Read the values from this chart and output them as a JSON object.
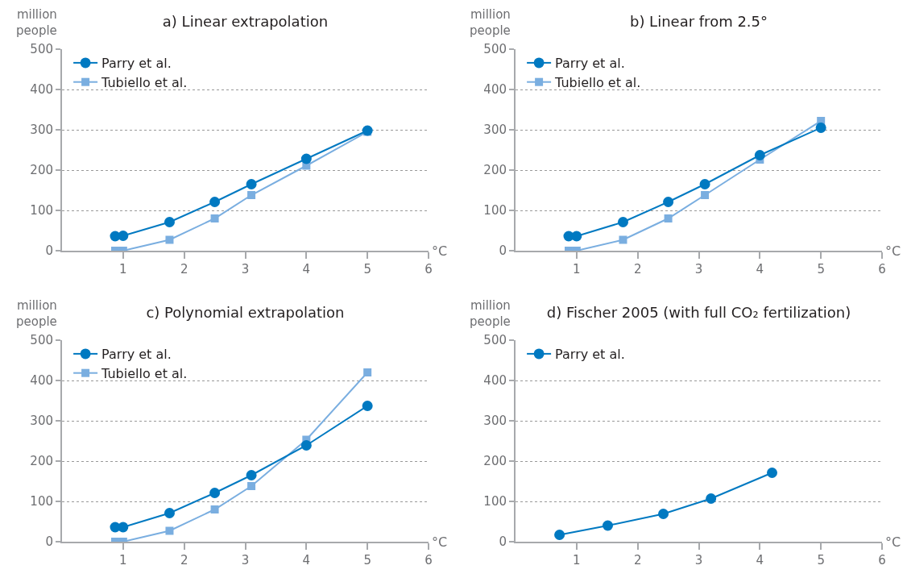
{
  "chart_data": [
    {
      "type": "line",
      "title": "a) Linear extrapolation",
      "xlabel": "°C",
      "ylabel": "million people",
      "xlim": [
        0,
        6
      ],
      "xticks": [
        1,
        2,
        3,
        4,
        5,
        6
      ],
      "ylim": [
        0,
        500
      ],
      "yticks": [
        0,
        100,
        200,
        300,
        400,
        500
      ],
      "grid": "y",
      "legend": "top left",
      "x": [
        0.87,
        1.0,
        1.76,
        2.5,
        3.1,
        4.0,
        5.0
      ],
      "series": [
        {
          "name": "Parry et al.",
          "color": "#0079c1",
          "marker": "circle",
          "values": [
            36,
            37,
            71,
            121,
            165,
            228,
            298
          ]
        },
        {
          "name": "Tubiello et al.",
          "color": "#7aaee0",
          "marker": "square",
          "values": [
            0,
            0,
            27,
            80,
            138,
            211,
            295
          ]
        }
      ]
    },
    {
      "type": "line",
      "title": "b) Linear from 2.5°",
      "xlabel": "°C",
      "ylabel": "million people",
      "xlim": [
        0,
        6
      ],
      "xticks": [
        1,
        2,
        3,
        4,
        5,
        6
      ],
      "ylim": [
        0,
        500
      ],
      "yticks": [
        0,
        100,
        200,
        300,
        400,
        500
      ],
      "grid": "y",
      "legend": "top left",
      "x": [
        0.87,
        1.0,
        1.76,
        2.5,
        3.1,
        4.0,
        5.0
      ],
      "series": [
        {
          "name": "Parry et al.",
          "color": "#0079c1",
          "marker": "circle",
          "values": [
            36,
            36,
            71,
            121,
            165,
            237,
            305
          ]
        },
        {
          "name": "Tubiello et al.",
          "color": "#7aaee0",
          "marker": "square",
          "values": [
            0,
            0,
            27,
            80,
            138,
            226,
            322
          ]
        }
      ]
    },
    {
      "type": "line",
      "title": "c) Polynomial extrapolation",
      "xlabel": "°C",
      "ylabel": "million people",
      "xlim": [
        0,
        6
      ],
      "xticks": [
        1,
        2,
        3,
        4,
        5,
        6
      ],
      "ylim": [
        0,
        500
      ],
      "yticks": [
        0,
        100,
        200,
        300,
        400,
        500
      ],
      "grid": "y",
      "legend": "top left",
      "x": [
        0.87,
        1.0,
        1.76,
        2.5,
        3.1,
        4.0,
        5.0
      ],
      "series": [
        {
          "name": "Parry et al.",
          "color": "#0079c1",
          "marker": "circle",
          "values": [
            36,
            36,
            71,
            121,
            165,
            239,
            337
          ]
        },
        {
          "name": "Tubiello et al.",
          "color": "#7aaee0",
          "marker": "square",
          "values": [
            0,
            0,
            27,
            80,
            138,
            253,
            420
          ]
        }
      ]
    },
    {
      "type": "line",
      "title": "d) Fischer 2005 (with full CO₂ fertilization)",
      "xlabel": "°C",
      "ylabel": "million people",
      "xlim": [
        0,
        6
      ],
      "xticks": [
        1,
        2,
        3,
        4,
        5,
        6
      ],
      "ylim": [
        0,
        500
      ],
      "yticks": [
        0,
        100,
        200,
        300,
        400,
        500
      ],
      "grid": "y",
      "legend": "top left",
      "x": [
        0.72,
        1.51,
        2.42,
        3.2,
        4.2
      ],
      "series": [
        {
          "name": "Parry et al.",
          "color": "#0079c1",
          "marker": "circle",
          "values": [
            17,
            40,
            69,
            107,
            171
          ]
        }
      ]
    }
  ]
}
